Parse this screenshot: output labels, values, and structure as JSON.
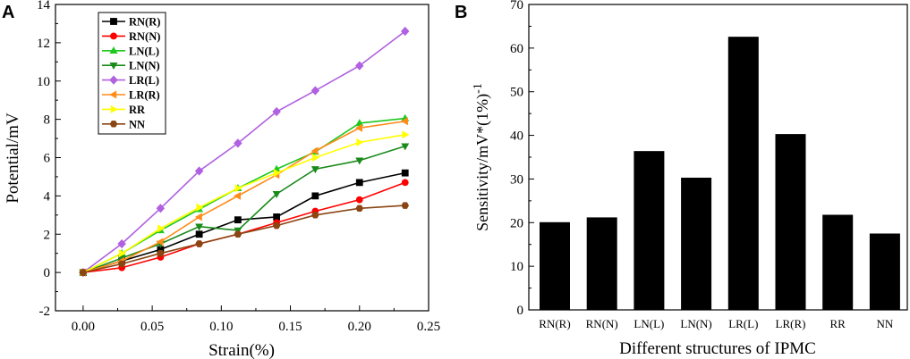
{
  "chart_data": [
    {
      "panel_label": "A",
      "type": "line",
      "xlabel": "Strain(%)",
      "ylabel": "Potential/mV",
      "xlim": [
        -0.02,
        0.25
      ],
      "ylim": [
        -2,
        14
      ],
      "xticks": [
        "0.00",
        "0.05",
        "0.10",
        "0.15",
        "0.20",
        "0.25"
      ],
      "yticks": [
        "-2",
        "0",
        "2",
        "4",
        "6",
        "8",
        "10",
        "12",
        "14"
      ],
      "legend_position": "top-left",
      "x": [
        0,
        0.028,
        0.056,
        0.084,
        0.112,
        0.14,
        0.168,
        0.2,
        0.233
      ],
      "series": [
        {
          "name": "RN(R)",
          "color": "#000000",
          "marker": "square",
          "values": [
            0,
            0.6,
            1.2,
            2.0,
            2.75,
            2.9,
            4.0,
            4.7,
            5.2
          ]
        },
        {
          "name": "RN(N)",
          "color": "#ff0000",
          "marker": "circle",
          "values": [
            0,
            0.25,
            0.8,
            1.5,
            2.0,
            2.6,
            3.2,
            3.8,
            4.7
          ]
        },
        {
          "name": "LN(L)",
          "color": "#1ec81e",
          "marker": "triangle-up",
          "values": [
            0,
            1.0,
            2.2,
            3.3,
            4.4,
            5.4,
            6.3,
            7.8,
            8.05
          ]
        },
        {
          "name": "LN(N)",
          "color": "#1a8a1a",
          "marker": "triangle-down",
          "values": [
            0,
            0.75,
            1.5,
            2.4,
            2.2,
            4.1,
            5.4,
            5.85,
            6.6
          ]
        },
        {
          "name": "LR(L)",
          "color": "#b060e0",
          "marker": "diamond",
          "values": [
            0,
            1.5,
            3.35,
            5.3,
            6.75,
            8.4,
            9.5,
            10.8,
            12.6
          ]
        },
        {
          "name": "LR(R)",
          "color": "#ff8c1a",
          "marker": "triangle-left",
          "values": [
            0,
            0.6,
            1.6,
            2.9,
            4.0,
            5.1,
            6.35,
            7.55,
            7.9
          ]
        },
        {
          "name": "RR",
          "color": "#ffff00",
          "marker": "triangle-right",
          "values": [
            0,
            1.0,
            2.3,
            3.4,
            4.4,
            5.2,
            6.0,
            6.8,
            7.2
          ]
        },
        {
          "name": "NN",
          "color": "#8b4513",
          "marker": "hexagon",
          "values": [
            0,
            0.45,
            1.0,
            1.5,
            2.0,
            2.45,
            3.0,
            3.35,
            3.5
          ]
        }
      ]
    },
    {
      "panel_label": "B",
      "type": "bar",
      "xlabel": "Different structures of IPMC",
      "ylabel": "Sensitivity/mV*(1%)",
      "ylabel_superscript": "-1",
      "ylim": [
        0,
        70
      ],
      "yticks": [
        "0",
        "10",
        "20",
        "30",
        "40",
        "50",
        "60",
        "70"
      ],
      "categories": [
        "RN(R)",
        "RN(N)",
        "LN(L)",
        "LN(N)",
        "LR(L)",
        "LR(R)",
        "RR",
        "NN"
      ],
      "values": [
        20.1,
        21.2,
        36.4,
        30.3,
        62.6,
        40.3,
        21.8,
        17.5
      ],
      "color": "#000000"
    }
  ]
}
